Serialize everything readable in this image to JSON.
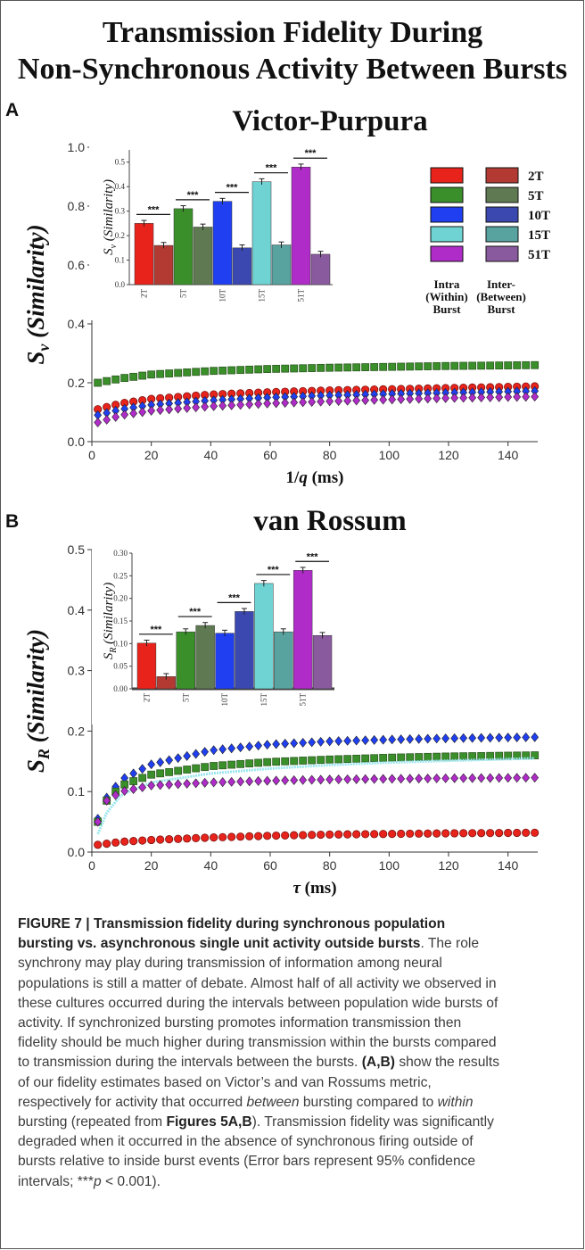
{
  "figure_title": {
    "line1": "Transmission Fidelity During",
    "line2": "Non-Synchronous Activity Between Bursts"
  },
  "panels": [
    {
      "letter": "A",
      "title": "Victor-Purpura"
    },
    {
      "letter": "B",
      "title": "van Rossum"
    }
  ],
  "legend": {
    "items": [
      {
        "label": "2T",
        "intra_color": "#e8231c",
        "inter_color": "#b23a32"
      },
      {
        "label": "5T",
        "intra_color": "#3a8f2a",
        "inter_color": "#5f7a52"
      },
      {
        "label": "10T",
        "intra_color": "#1f3ff0",
        "inter_color": "#3b48b0"
      },
      {
        "label": "15T",
        "intra_color": "#6fd3d3",
        "inter_color": "#58a3a0"
      },
      {
        "label": "51T",
        "intra_color": "#b02cc8",
        "inter_color": "#8a5a9e"
      }
    ],
    "intra_label": [
      "Intra",
      "(Within)",
      "Burst"
    ],
    "inter_label": [
      "Inter-",
      "(Between)",
      "Burst"
    ]
  },
  "chart_data": [
    {
      "panel": "A",
      "type": "scatter",
      "xlabel": "1/q (ms)",
      "ylabel": "Sv (Similarity)",
      "xlim": [
        0,
        150
      ],
      "ylim": [
        0,
        1.0
      ],
      "xticks": [
        "0",
        "20",
        "40",
        "60",
        "80",
        "100",
        "120",
        "140"
      ],
      "yticks": [
        "0.0",
        "0.2",
        "0.4",
        "0.6",
        "0.8",
        "1.0"
      ],
      "series": [
        {
          "name": "5T",
          "color": "#3a8f2a",
          "marker": "square",
          "x": [
            2,
            10,
            20,
            40,
            60,
            80,
            100,
            120,
            150
          ],
          "y": [
            0.2,
            0.215,
            0.228,
            0.24,
            0.247,
            0.251,
            0.254,
            0.257,
            0.26
          ]
        },
        {
          "name": "2T",
          "color": "#e8231c",
          "marker": "circle",
          "x": [
            2,
            10,
            20,
            40,
            60,
            80,
            100,
            120,
            150
          ],
          "y": [
            0.11,
            0.13,
            0.145,
            0.16,
            0.168,
            0.174,
            0.178,
            0.182,
            0.188
          ]
        },
        {
          "name": "10T",
          "color": "#1f3ff0",
          "marker": "diamond",
          "x": [
            2,
            10,
            20,
            40,
            60,
            80,
            100,
            120,
            150
          ],
          "y": [
            0.09,
            0.11,
            0.125,
            0.14,
            0.15,
            0.157,
            0.162,
            0.166,
            0.172
          ]
        },
        {
          "name": "51T",
          "color": "#b02cc8",
          "marker": "diamond",
          "x": [
            2,
            10,
            20,
            40,
            60,
            80,
            100,
            120,
            150
          ],
          "y": [
            0.065,
            0.09,
            0.105,
            0.12,
            0.13,
            0.137,
            0.143,
            0.148,
            0.153
          ]
        }
      ],
      "inset": {
        "type": "bar",
        "ylabel": "Sv (Similarity)",
        "ylim": [
          0,
          0.55
        ],
        "yticks": [
          "0.0",
          "0.1",
          "0.2",
          "0.3",
          "0.4",
          "0.5"
        ],
        "categories": [
          "2T",
          "5T",
          "10T",
          "15T",
          "51T"
        ],
        "series": [
          {
            "name": "Intra (Within) Burst",
            "values": [
              0.25,
              0.31,
              0.34,
              0.42,
              0.48
            ]
          },
          {
            "name": "Inter- (Between) Burst",
            "values": [
              0.16,
              0.235,
              0.15,
              0.162,
              0.124
            ]
          }
        ],
        "significance": [
          "***",
          "***",
          "***",
          "***",
          "***"
        ]
      }
    },
    {
      "panel": "B",
      "type": "scatter",
      "xlabel": "τ (ms)",
      "ylabel": "SR (Similarity)",
      "xlim": [
        0,
        150
      ],
      "ylim": [
        0,
        0.5
      ],
      "xticks": [
        "0",
        "20",
        "40",
        "60",
        "80",
        "100",
        "120",
        "140"
      ],
      "yticks": [
        "0.0",
        "0.1",
        "0.2",
        "0.3",
        "0.4",
        "0.5"
      ],
      "series": [
        {
          "name": "10T",
          "color": "#1f3ff0",
          "marker": "diamond",
          "x": [
            2,
            5,
            10,
            20,
            40,
            60,
            80,
            100,
            120,
            150
          ],
          "y": [
            0.055,
            0.09,
            0.12,
            0.145,
            0.168,
            0.178,
            0.183,
            0.186,
            0.188,
            0.19
          ]
        },
        {
          "name": "5T",
          "color": "#3a8f2a",
          "marker": "square",
          "x": [
            2,
            5,
            10,
            20,
            40,
            60,
            80,
            100,
            120,
            150
          ],
          "y": [
            0.05,
            0.085,
            0.11,
            0.128,
            0.142,
            0.149,
            0.153,
            0.156,
            0.158,
            0.16
          ]
        },
        {
          "name": "15T",
          "color": "#9ae6ee",
          "marker": "line",
          "x": [
            2,
            5,
            10,
            20,
            40,
            60,
            80,
            100,
            120,
            150
          ],
          "y": [
            0.03,
            0.065,
            0.095,
            0.115,
            0.13,
            0.138,
            0.144,
            0.148,
            0.151,
            0.155
          ]
        },
        {
          "name": "51T",
          "color": "#b02cc8",
          "marker": "diamond",
          "x": [
            2,
            5,
            10,
            20,
            40,
            60,
            80,
            100,
            120,
            150
          ],
          "y": [
            0.05,
            0.085,
            0.1,
            0.11,
            0.115,
            0.118,
            0.12,
            0.121,
            0.122,
            0.123
          ]
        },
        {
          "name": "2T",
          "color": "#e8231c",
          "marker": "circle",
          "x": [
            2,
            10,
            20,
            40,
            60,
            80,
            100,
            120,
            150
          ],
          "y": [
            0.012,
            0.017,
            0.02,
            0.024,
            0.027,
            0.029,
            0.03,
            0.031,
            0.032
          ]
        }
      ],
      "inset": {
        "type": "bar",
        "ylabel": "SR (Similarity)",
        "ylim": [
          0,
          0.3
        ],
        "yticks": [
          "0.00",
          "0.05",
          "0.10",
          "0.15",
          "0.20",
          "0.25",
          "0.30"
        ],
        "categories": [
          "2T",
          "5T",
          "10T",
          "15T",
          "51T"
        ],
        "series": [
          {
            "name": "Intra (Within) Burst",
            "values": [
              0.101,
              0.126,
              0.123,
              0.233,
              0.262
            ]
          },
          {
            "name": "Inter- (Between) Burst",
            "values": [
              0.027,
              0.14,
              0.171,
              0.126,
              0.118
            ]
          }
        ],
        "significance": [
          "***",
          "***",
          "***",
          "***",
          "***"
        ]
      }
    }
  ],
  "caption": {
    "head": "FIGURE 7 | Transmission fidelity during synchronous population",
    "head2": "bursting vs. asynchronous single unit activity outside bursts",
    "lines": [
      "synchrony may play during transmission of information among neural",
      "populations is still a matter of debate. Almost half of all activity we observed in",
      "these cultures occurred during the intervals between population wide bursts of",
      "activity. If synchronized bursting promotes information transmission then",
      "fidelity should be much higher during transmission within the bursts compared",
      "to transmission during the intervals between the bursts.",
      "of our fidelity estimates based on Victor’s and van Rossums metric,",
      "respectively for activity that occurred",
      "bursting (repeated from",
      "degraded when it occurred in the absence of synchronous firing outside of",
      "bursts relative to inside burst events (Error bars represent 95% confidence",
      "intervals; ***"
    ],
    "head2_tail": ". The role",
    "ab": "(A,B)",
    "ab_tail": " show the results",
    "between": "between",
    "between_tail": " bursting compared to ",
    "within": "within",
    "figs": "Figures 5A,B",
    "figs_tail": "). Transmission fidelity was significantly",
    "p": "p",
    "p_tail": " < 0.001)."
  }
}
